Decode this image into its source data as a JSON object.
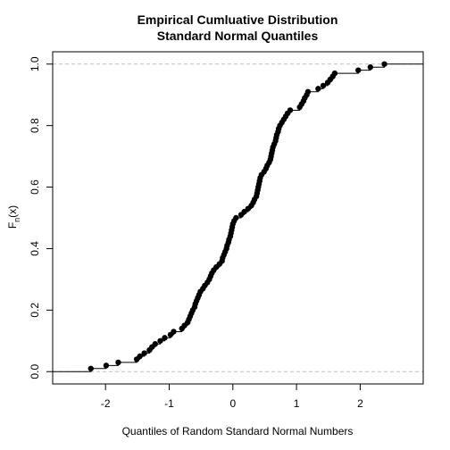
{
  "chart_data": {
    "type": "step",
    "title_line1": "Empirical Cumluative Distribution",
    "title_line2": "Standard Normal Quantiles",
    "xlabel": "Quantiles of Random Standard Normal Numbers",
    "ylabel_base": "F",
    "ylabel_sub": "n",
    "ylabel_arg": "(x)",
    "xlim": [
      -2.83,
      2.99
    ],
    "ylim": [
      -0.04,
      1.04
    ],
    "xticks": [
      -2,
      -1,
      0,
      1,
      2
    ],
    "yticks": [
      0.0,
      0.2,
      0.4,
      0.6,
      0.8,
      1.0
    ],
    "ytick_labels": [
      "0.0",
      "0.2",
      "0.4",
      "0.6",
      "0.8",
      "1.0"
    ],
    "reference_lines_y": [
      0,
      1
    ],
    "points": [
      [
        -2.23,
        0.01
      ],
      [
        -1.99,
        0.02
      ],
      [
        -1.8,
        0.03
      ],
      [
        -1.51,
        0.04
      ],
      [
        -1.46,
        0.05
      ],
      [
        -1.39,
        0.06
      ],
      [
        -1.31,
        0.07
      ],
      [
        -1.27,
        0.08
      ],
      [
        -1.22,
        0.09
      ],
      [
        -1.14,
        0.1
      ],
      [
        -1.07,
        0.11
      ],
      [
        -0.98,
        0.12
      ],
      [
        -0.93,
        0.13
      ],
      [
        -0.8,
        0.14
      ],
      [
        -0.76,
        0.15
      ],
      [
        -0.71,
        0.16
      ],
      [
        -0.69,
        0.17
      ],
      [
        -0.67,
        0.18
      ],
      [
        -0.65,
        0.19
      ],
      [
        -0.63,
        0.2
      ],
      [
        -0.6,
        0.21
      ],
      [
        -0.59,
        0.22
      ],
      [
        -0.57,
        0.23
      ],
      [
        -0.55,
        0.24
      ],
      [
        -0.53,
        0.25
      ],
      [
        -0.51,
        0.26
      ],
      [
        -0.47,
        0.27
      ],
      [
        -0.44,
        0.28
      ],
      [
        -0.4,
        0.29
      ],
      [
        -0.37,
        0.3
      ],
      [
        -0.35,
        0.31
      ],
      [
        -0.33,
        0.32
      ],
      [
        -0.3,
        0.33
      ],
      [
        -0.26,
        0.34
      ],
      [
        -0.21,
        0.35
      ],
      [
        -0.17,
        0.36
      ],
      [
        -0.16,
        0.37
      ],
      [
        -0.14,
        0.38
      ],
      [
        -0.12,
        0.39
      ],
      [
        -0.1,
        0.4
      ],
      [
        -0.09,
        0.41
      ],
      [
        -0.07,
        0.42
      ],
      [
        -0.06,
        0.43
      ],
      [
        -0.04,
        0.44
      ],
      [
        -0.03,
        0.45
      ],
      [
        -0.02,
        0.46
      ],
      [
        -0.01,
        0.47
      ],
      [
        0.0,
        0.48
      ],
      [
        0.02,
        0.49
      ],
      [
        0.05,
        0.5
      ],
      [
        0.13,
        0.51
      ],
      [
        0.18,
        0.52
      ],
      [
        0.24,
        0.53
      ],
      [
        0.29,
        0.54
      ],
      [
        0.32,
        0.55
      ],
      [
        0.34,
        0.56
      ],
      [
        0.37,
        0.57
      ],
      [
        0.38,
        0.58
      ],
      [
        0.39,
        0.59
      ],
      [
        0.4,
        0.6
      ],
      [
        0.41,
        0.61
      ],
      [
        0.42,
        0.62
      ],
      [
        0.43,
        0.63
      ],
      [
        0.45,
        0.64
      ],
      [
        0.49,
        0.65
      ],
      [
        0.52,
        0.66
      ],
      [
        0.54,
        0.67
      ],
      [
        0.57,
        0.68
      ],
      [
        0.59,
        0.69
      ],
      [
        0.6,
        0.7
      ],
      [
        0.61,
        0.71
      ],
      [
        0.62,
        0.72
      ],
      [
        0.63,
        0.73
      ],
      [
        0.65,
        0.74
      ],
      [
        0.67,
        0.75
      ],
      [
        0.68,
        0.76
      ],
      [
        0.69,
        0.77
      ],
      [
        0.71,
        0.78
      ],
      [
        0.72,
        0.79
      ],
      [
        0.74,
        0.8
      ],
      [
        0.77,
        0.81
      ],
      [
        0.8,
        0.82
      ],
      [
        0.83,
        0.83
      ],
      [
        0.86,
        0.84
      ],
      [
        0.9,
        0.85
      ],
      [
        1.05,
        0.86
      ],
      [
        1.08,
        0.87
      ],
      [
        1.11,
        0.88
      ],
      [
        1.13,
        0.89
      ],
      [
        1.16,
        0.9
      ],
      [
        1.18,
        0.91
      ],
      [
        1.34,
        0.92
      ],
      [
        1.42,
        0.93
      ],
      [
        1.49,
        0.94
      ],
      [
        1.53,
        0.95
      ],
      [
        1.57,
        0.96
      ],
      [
        1.6,
        0.97
      ],
      [
        1.97,
        0.98
      ],
      [
        2.16,
        0.99
      ],
      [
        2.38,
        1.0
      ]
    ]
  }
}
